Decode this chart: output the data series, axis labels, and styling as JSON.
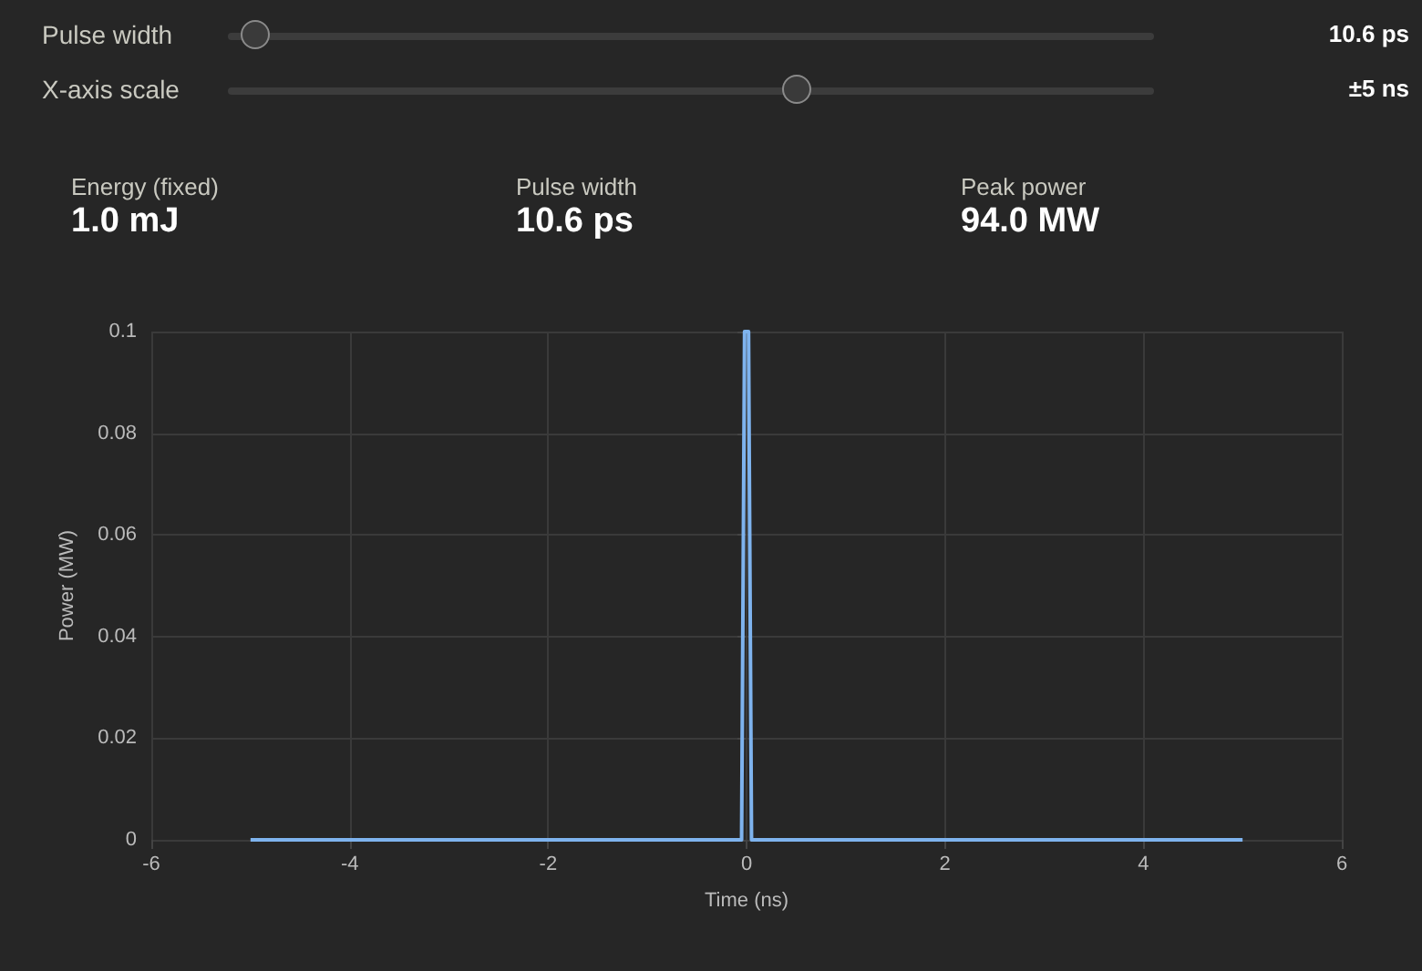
{
  "chart_data": [
    {
      "type": "other",
      "annotations": [
        "Pulse width",
        "10.6 ps",
        "X-axis scale",
        "±5 ns",
        "Energy (fixed)",
        "1.0 mJ",
        "Pulse width",
        "10.6 ps",
        "Peak power",
        "94.0 MW"
      ]
    },
    {
      "type": "line",
      "xlabel": "Time (ns)",
      "ylabel": "Power (MW)",
      "color": "#7eb3ee",
      "x": [
        -5,
        -0.05,
        -0.02,
        0.02,
        0.05,
        5
      ],
      "values": [
        0,
        0,
        0.1,
        0.1,
        0,
        0
      ],
      "xlim": [
        -6,
        6
      ],
      "xticks": [
        -6,
        -4,
        -2,
        0,
        2,
        4,
        6
      ],
      "ylim": [
        0,
        0.1
      ],
      "yticks": [
        0,
        0.02,
        0.04,
        0.06,
        0.08,
        0.1
      ],
      "grid": true,
      "marker": "none",
      "line_style": "solid"
    }
  ]
}
